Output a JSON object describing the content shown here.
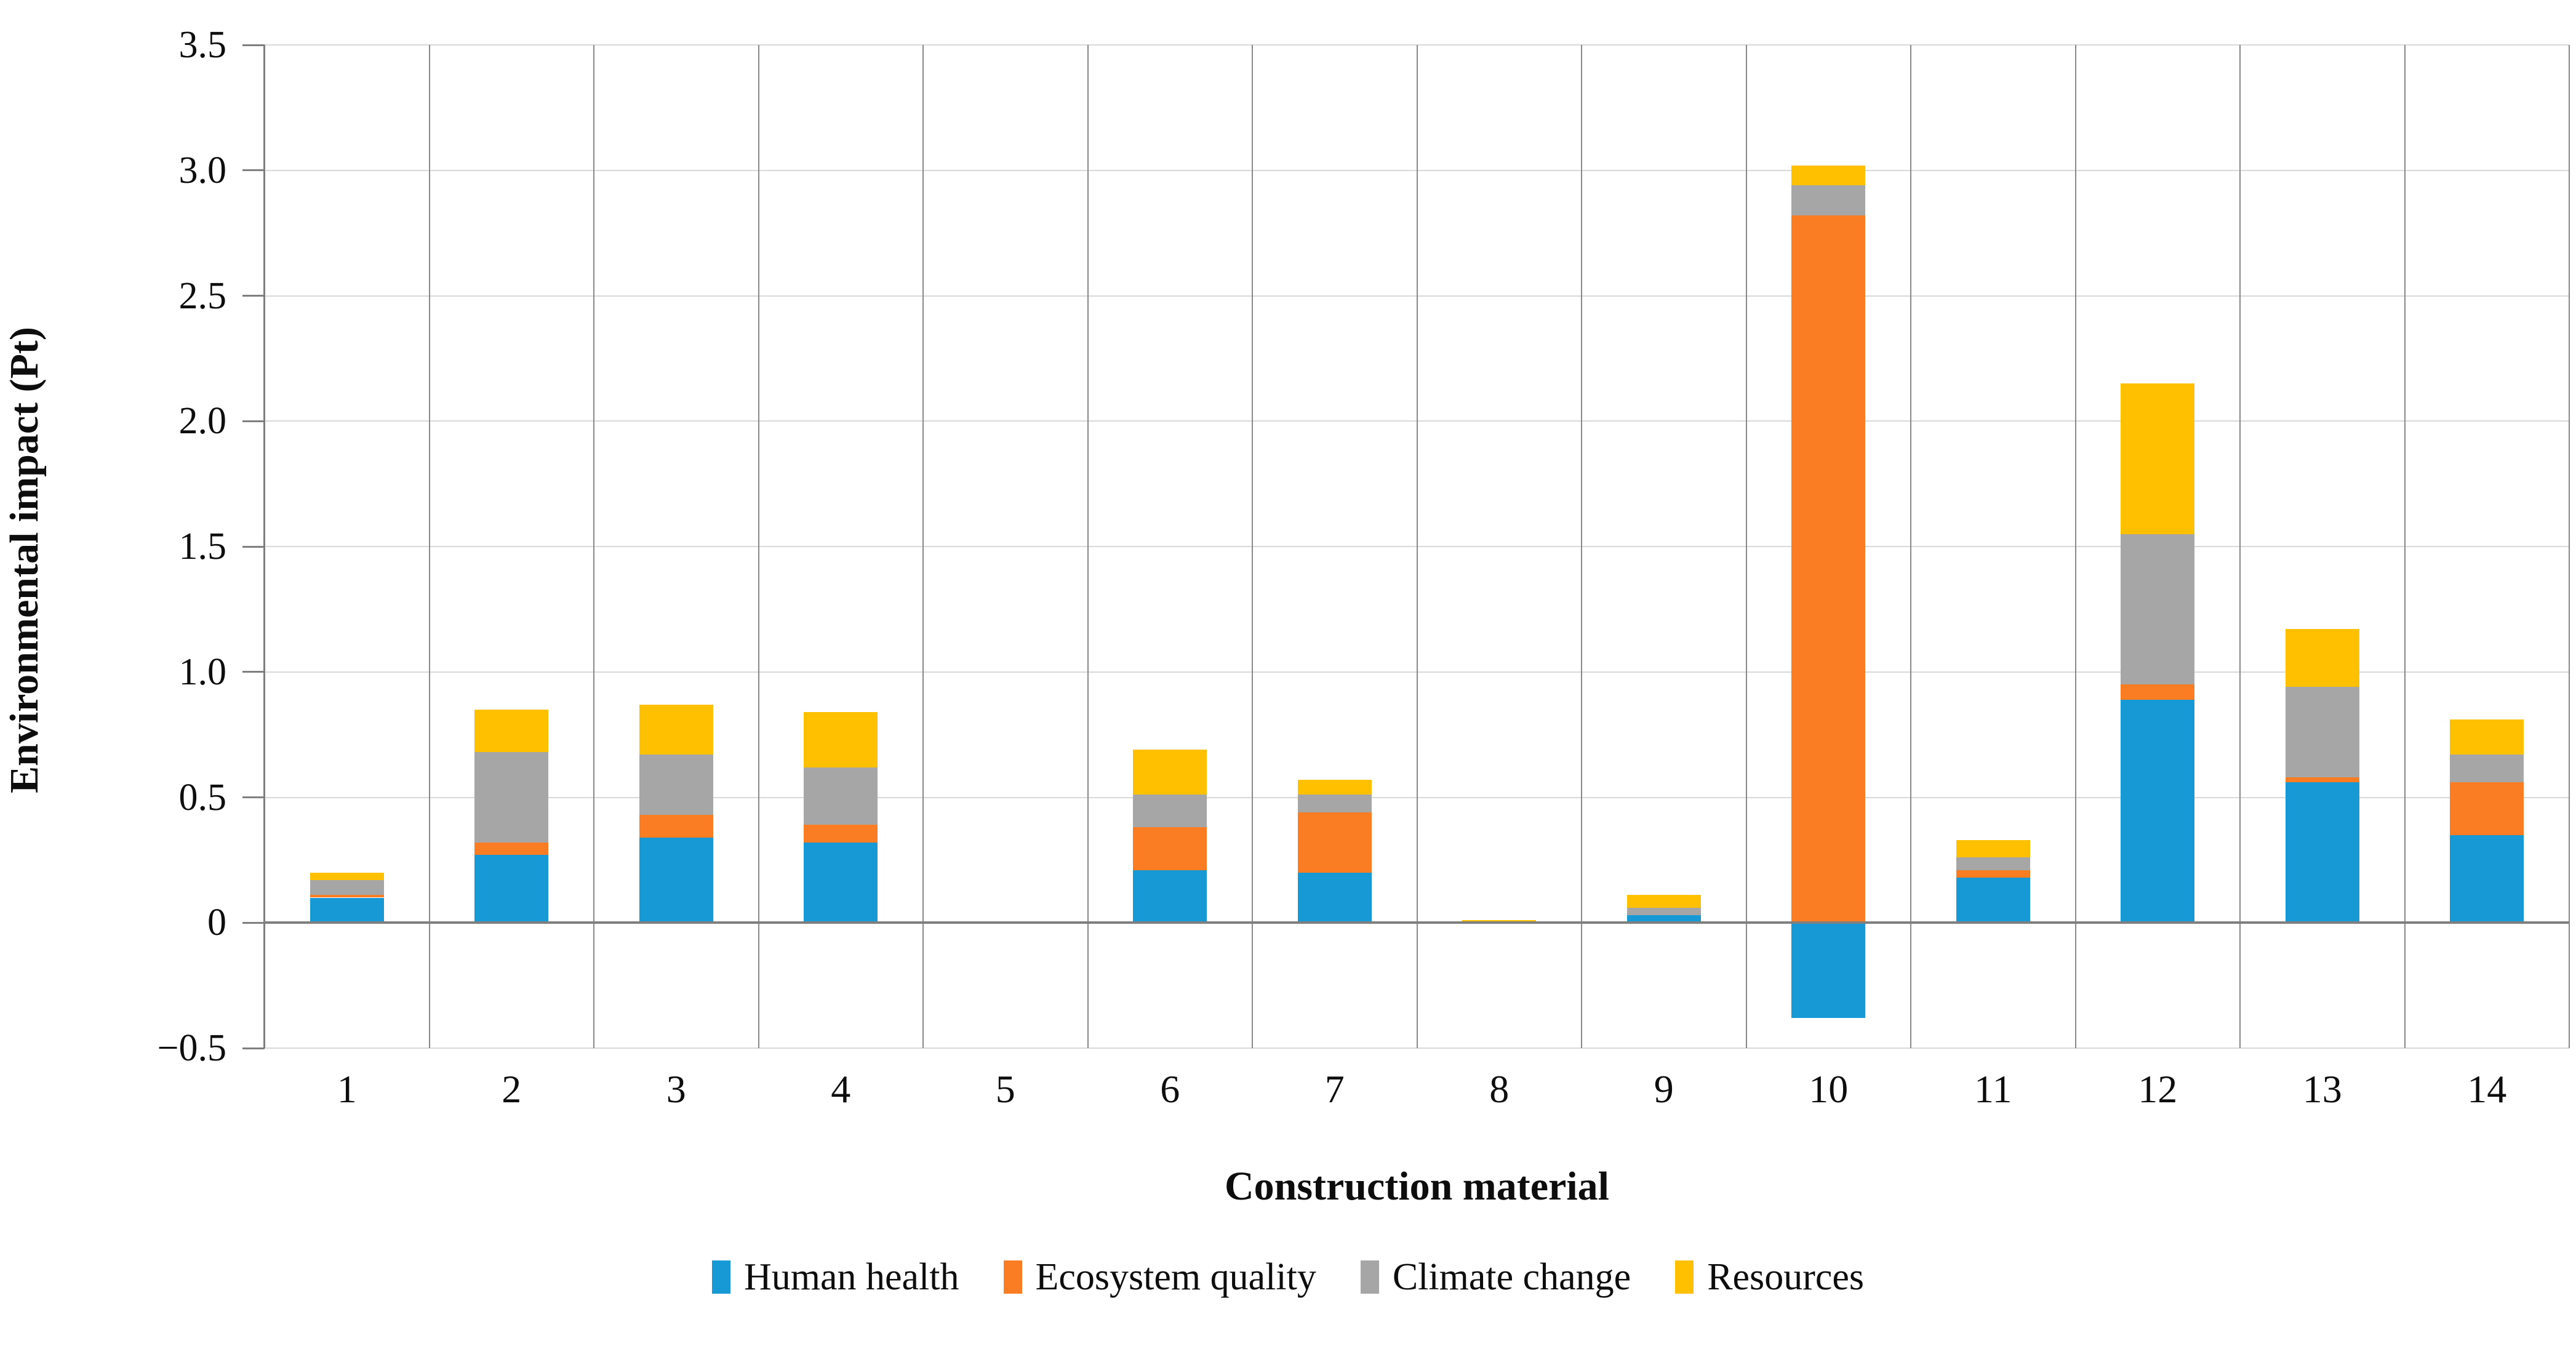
{
  "chart_data": {
    "type": "bar",
    "stacked": true,
    "title": "",
    "xlabel": "Construction material",
    "ylabel": "Environmental impact (Pt)",
    "ylim": [
      -0.5,
      3.5
    ],
    "grid": true,
    "legend_position": "bottom",
    "categories": [
      "1",
      "2",
      "3",
      "4",
      "5",
      "6",
      "7",
      "8",
      "9",
      "10",
      "11",
      "12",
      "13",
      "14"
    ],
    "y_ticks": [
      {
        "value": 3.5,
        "label": "3.5"
      },
      {
        "value": 3.0,
        "label": "3.0"
      },
      {
        "value": 2.5,
        "label": "2.5"
      },
      {
        "value": 2.0,
        "label": "2.0"
      },
      {
        "value": 1.5,
        "label": "1.5"
      },
      {
        "value": 1.0,
        "label": "1.0"
      },
      {
        "value": 0.5,
        "label": "0.5"
      },
      {
        "value": 0.0,
        "label": "0"
      },
      {
        "value": -0.5,
        "label": "−0.5"
      }
    ],
    "series": [
      {
        "name": "Human health",
        "color": "#1799D6",
        "values": [
          0.1,
          0.27,
          0.34,
          0.32,
          0,
          0.21,
          0.2,
          0,
          0.03,
          -0.38,
          0.18,
          0.89,
          0.56,
          0.35
        ]
      },
      {
        "name": "Ecosystem quality",
        "color": "#FB7D23",
        "values": [
          0.01,
          0.05,
          0.09,
          0.07,
          0,
          0.17,
          0.24,
          0,
          0,
          2.82,
          0.03,
          0.06,
          0.02,
          0.21
        ]
      },
      {
        "name": "Climate change",
        "color": "#A6A6A6",
        "values": [
          0.06,
          0.36,
          0.24,
          0.23,
          0,
          0.13,
          0.07,
          0,
          0.03,
          0.12,
          0.05,
          0.6,
          0.36,
          0.11
        ]
      },
      {
        "name": "Resources",
        "color": "#FFC000",
        "values": [
          0.03,
          0.17,
          0.2,
          0.22,
          0,
          0.18,
          0.06,
          0.01,
          0.05,
          0.08,
          0.07,
          0.6,
          0.23,
          0.14
        ]
      }
    ]
  },
  "colors": {
    "grid_light": "#d9d9d9",
    "grid_dark": "#7f7f7f",
    "separator": "#898989"
  }
}
